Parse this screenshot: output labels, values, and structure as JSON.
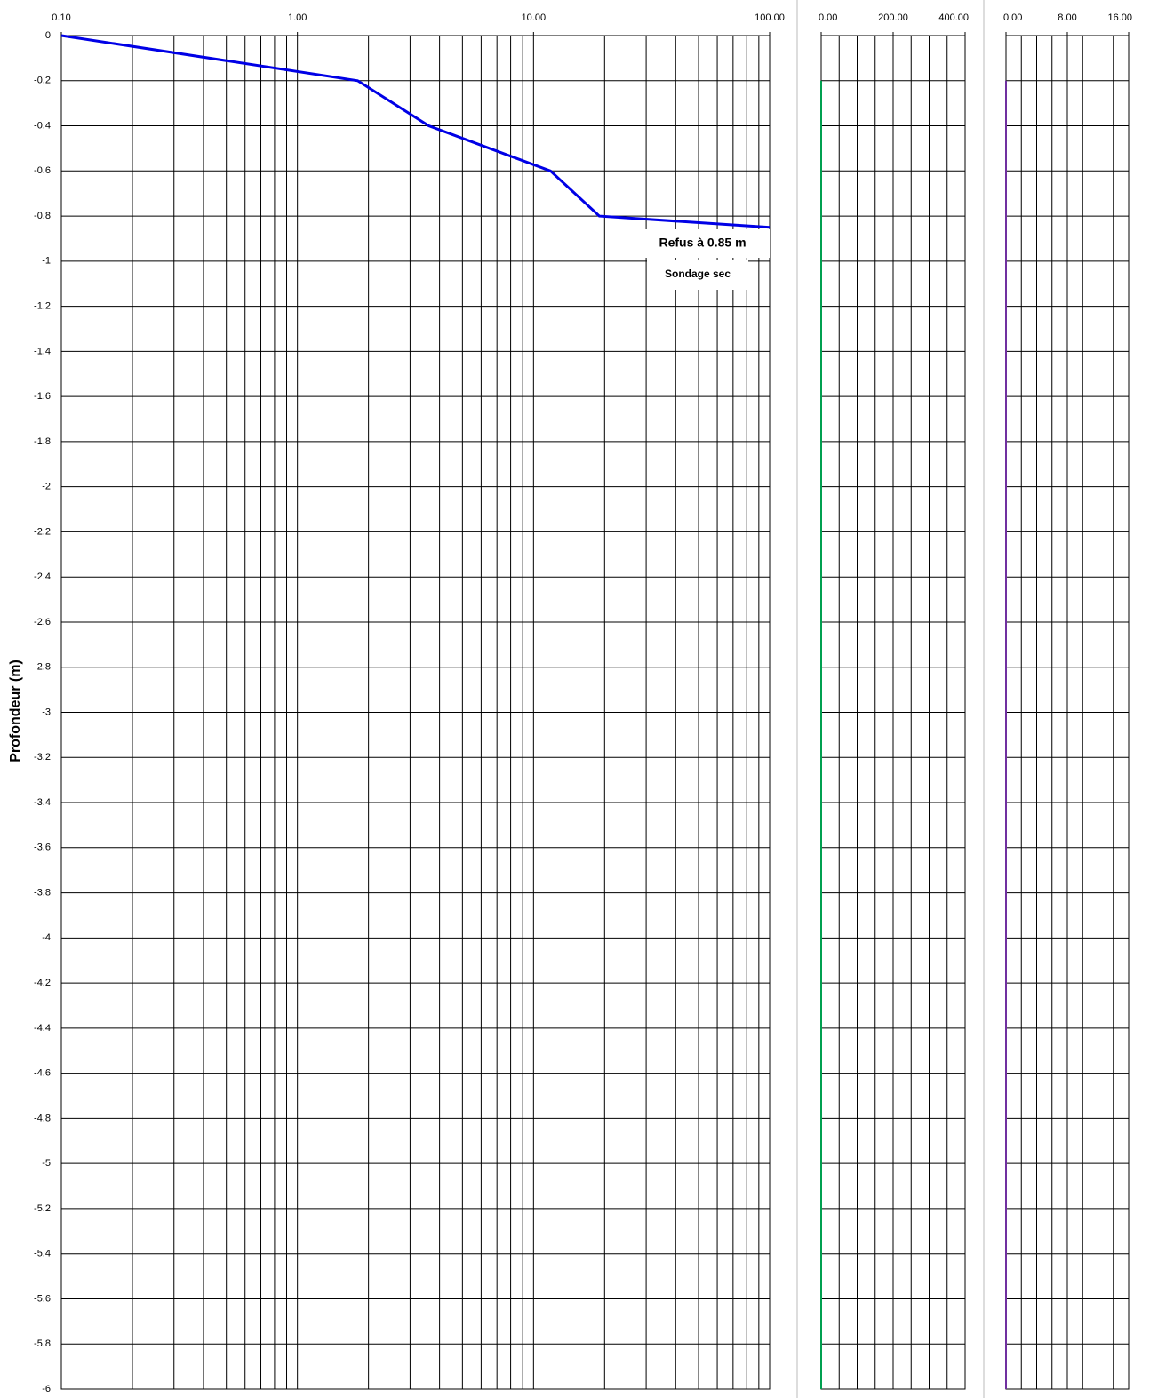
{
  "chart_data": [
    {
      "type": "line",
      "y_label": "Profondeur (m)",
      "xscale": "log",
      "minor_grid": true,
      "xlim": [
        0.1,
        100
      ],
      "xticks": [
        {
          "value": 0.1,
          "label": "0.10"
        },
        {
          "value": 1,
          "label": "1.00"
        },
        {
          "value": 10,
          "label": "10.00"
        },
        {
          "value": 100,
          "label": "100.00"
        }
      ],
      "ylim": [
        -6,
        0
      ],
      "yticks": [
        0,
        -0.2,
        -0.4,
        -0.6,
        -0.8,
        -1,
        -1.2,
        -1.4,
        -1.6,
        -1.8,
        -2,
        -2.2,
        -2.4,
        -2.6,
        -2.8,
        -3,
        -3.2,
        -3.4,
        -3.6,
        -3.8,
        -4,
        -4.2,
        -4.4,
        -4.6,
        -4.8,
        -5,
        -5.2,
        -5.4,
        -5.6,
        -5.8,
        -6
      ],
      "show_ytick_labels": true,
      "series": [
        {
          "color": "#0000e6",
          "x": [
            0.1,
            1.8,
            3.6,
            11.8,
            19,
            100
          ],
          "values": [
            0,
            -0.2,
            -0.4,
            -0.6,
            -0.8,
            -0.85
          ]
        }
      ],
      "annotations": [
        {
          "text": "Refus à 0.85 m"
        },
        {
          "text": "Sondage sec"
        }
      ]
    },
    {
      "type": "line",
      "xscale": "linear",
      "xgrid_step": 50,
      "xlim": [
        0,
        400
      ],
      "xticks": [
        {
          "value": 0,
          "label": "0.00"
        },
        {
          "value": 200,
          "label": "200.00"
        },
        {
          "value": 400,
          "label": "400.00"
        }
      ],
      "ylim": [
        -6,
        0
      ],
      "yticks": [
        0,
        -0.2,
        -0.4,
        -0.6,
        -0.8,
        -1,
        -1.2,
        -1.4,
        -1.6,
        -1.8,
        -2,
        -2.2,
        -2.4,
        -2.6,
        -2.8,
        -3,
        -3.2,
        -3.4,
        -3.6,
        -3.8,
        -4,
        -4.2,
        -4.4,
        -4.6,
        -4.8,
        -5,
        -5.2,
        -5.4,
        -5.6,
        -5.8,
        -6
      ],
      "show_ytick_labels": false,
      "series": [
        {
          "color": "#00a050",
          "x": [
            0,
            0
          ],
          "values": [
            -0.2,
            -6
          ]
        }
      ]
    },
    {
      "type": "line",
      "xscale": "linear",
      "xgrid_step": 2,
      "xlim": [
        0,
        16
      ],
      "xticks": [
        {
          "value": 0,
          "label": "0.00"
        },
        {
          "value": 8,
          "label": "8.00"
        },
        {
          "value": 16,
          "label": "16.00"
        }
      ],
      "ylim": [
        -6,
        0
      ],
      "yticks": [
        0,
        -0.2,
        -0.4,
        -0.6,
        -0.8,
        -1,
        -1.2,
        -1.4,
        -1.6,
        -1.8,
        -2,
        -2.2,
        -2.4,
        -2.6,
        -2.8,
        -3,
        -3.2,
        -3.4,
        -3.6,
        -3.8,
        -4,
        -4.2,
        -4.4,
        -4.6,
        -4.8,
        -5,
        -5.2,
        -5.4,
        -5.6,
        -5.8,
        -6
      ],
      "show_ytick_labels": false,
      "series": [
        {
          "color": "#7030a0",
          "x": [
            0,
            0
          ],
          "values": [
            -0.2,
            -6
          ]
        }
      ]
    }
  ]
}
